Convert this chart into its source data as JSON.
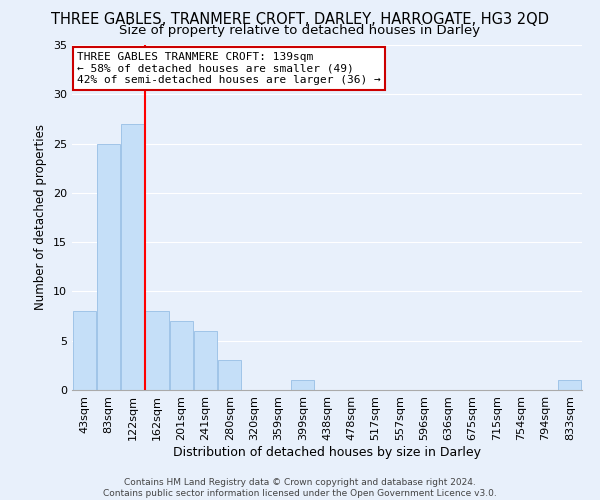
{
  "title": "THREE GABLES, TRANMERE CROFT, DARLEY, HARROGATE, HG3 2QD",
  "subtitle": "Size of property relative to detached houses in Darley",
  "xlabel": "Distribution of detached houses by size in Darley",
  "ylabel": "Number of detached properties",
  "bar_labels": [
    "43sqm",
    "83sqm",
    "122sqm",
    "162sqm",
    "201sqm",
    "241sqm",
    "280sqm",
    "320sqm",
    "359sqm",
    "399sqm",
    "438sqm",
    "478sqm",
    "517sqm",
    "557sqm",
    "596sqm",
    "636sqm",
    "675sqm",
    "715sqm",
    "754sqm",
    "794sqm",
    "833sqm"
  ],
  "bar_values": [
    8,
    25,
    27,
    8,
    7,
    6,
    3,
    0,
    0,
    1,
    0,
    0,
    0,
    0,
    0,
    0,
    0,
    0,
    0,
    0,
    1
  ],
  "bar_color": "#c5dff8",
  "bar_edge_color": "#a0c4e8",
  "ylim": [
    0,
    35
  ],
  "yticks": [
    0,
    5,
    10,
    15,
    20,
    25,
    30,
    35
  ],
  "red_line_x": 2.5,
  "annotation_title": "THREE GABLES TRANMERE CROFT: 139sqm",
  "annotation_line1": "← 58% of detached houses are smaller (49)",
  "annotation_line2": "42% of semi-detached houses are larger (36) →",
  "footer_line1": "Contains HM Land Registry data © Crown copyright and database right 2024.",
  "footer_line2": "Contains public sector information licensed under the Open Government Licence v3.0.",
  "bg_color": "#e8f0fb",
  "plot_bg_color": "#e8f0fb",
  "grid_color": "#ffffff",
  "title_fontsize": 10.5,
  "subtitle_fontsize": 9.5,
  "xlabel_fontsize": 9,
  "ylabel_fontsize": 8.5,
  "tick_fontsize": 8,
  "annotation_fontsize": 8,
  "footer_fontsize": 6.5,
  "annotation_box_color": "#ffffff",
  "annotation_border_color": "#cc0000"
}
